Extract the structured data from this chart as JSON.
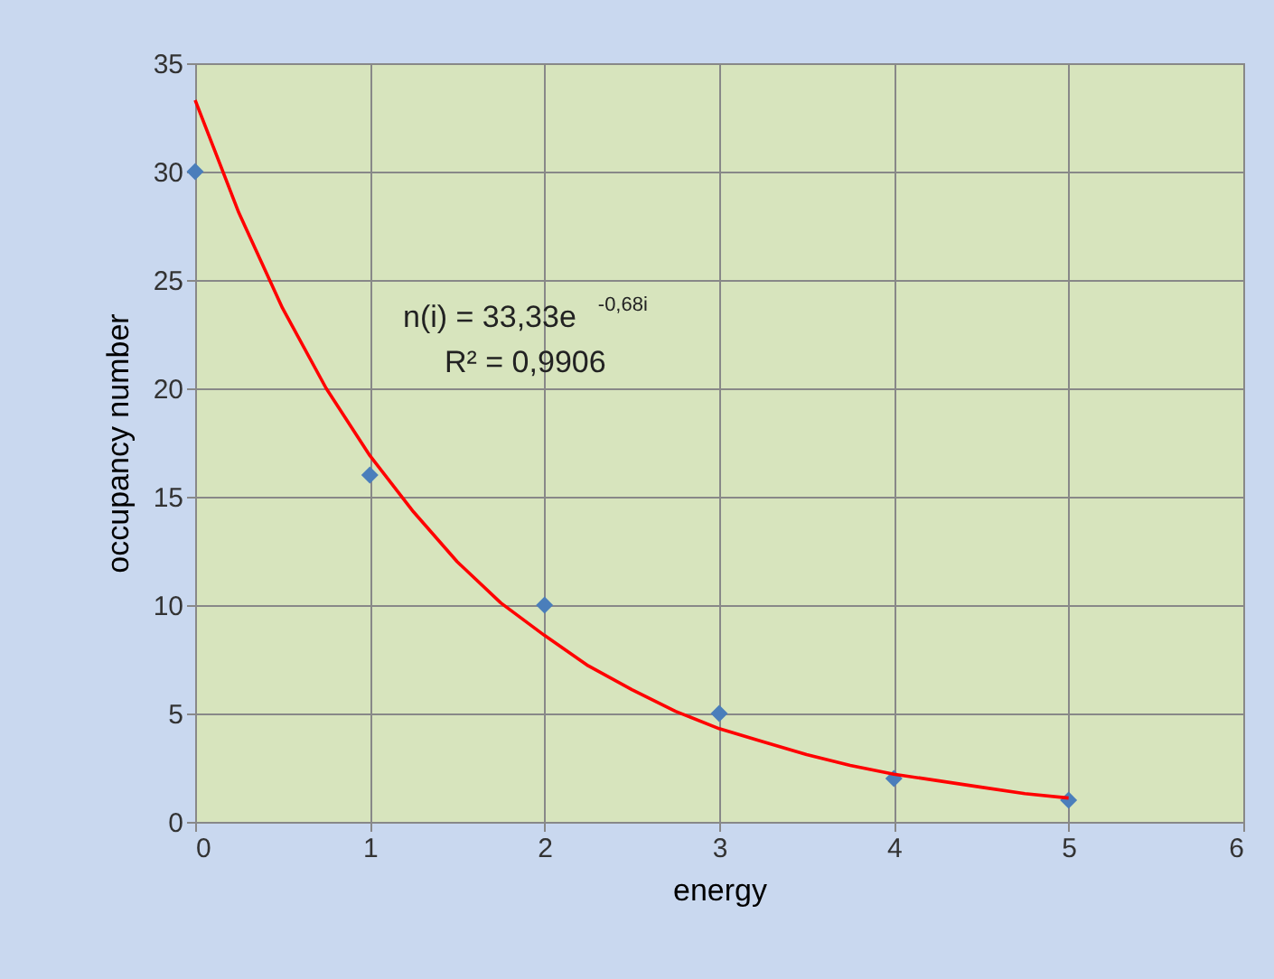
{
  "chart_data": {
    "type": "scatter",
    "xlabel": "energy",
    "ylabel": "occupancy number",
    "x": [
      0,
      1,
      2,
      3,
      4,
      5
    ],
    "series": [
      {
        "color": "#4a7ebb",
        "marker": "diamond",
        "values": [
          30,
          16,
          10,
          5,
          2,
          1
        ]
      },
      {
        "type": "line",
        "color": "#ff0000",
        "marker": "none",
        "line_style": "solid",
        "x": [
          0,
          0.25,
          0.5,
          0.75,
          1,
          1.25,
          1.5,
          1.75,
          2,
          2.25,
          2.5,
          2.75,
          3,
          3.25,
          3.5,
          3.75,
          4,
          4.25,
          4.5,
          4.75,
          5
        ],
        "values": [
          33.3,
          28.1,
          23.7,
          20.0,
          16.9,
          14.3,
          12.0,
          10.1,
          8.6,
          7.2,
          6.1,
          5.1,
          4.3,
          3.7,
          3.1,
          2.6,
          2.2,
          1.9,
          1.6,
          1.3,
          1.1
        ]
      }
    ],
    "xlim": [
      0,
      6
    ],
    "xticks": [
      0,
      1,
      2,
      3,
      4,
      5,
      6
    ],
    "ylim": [
      0,
      35
    ],
    "yticks": [
      0,
      5,
      10,
      15,
      20,
      25,
      30,
      35
    ],
    "grid": true,
    "annotations": [
      "n(i) = 33,33e$^{-0,68i}$",
      "R² = 0,9906"
    ]
  }
}
